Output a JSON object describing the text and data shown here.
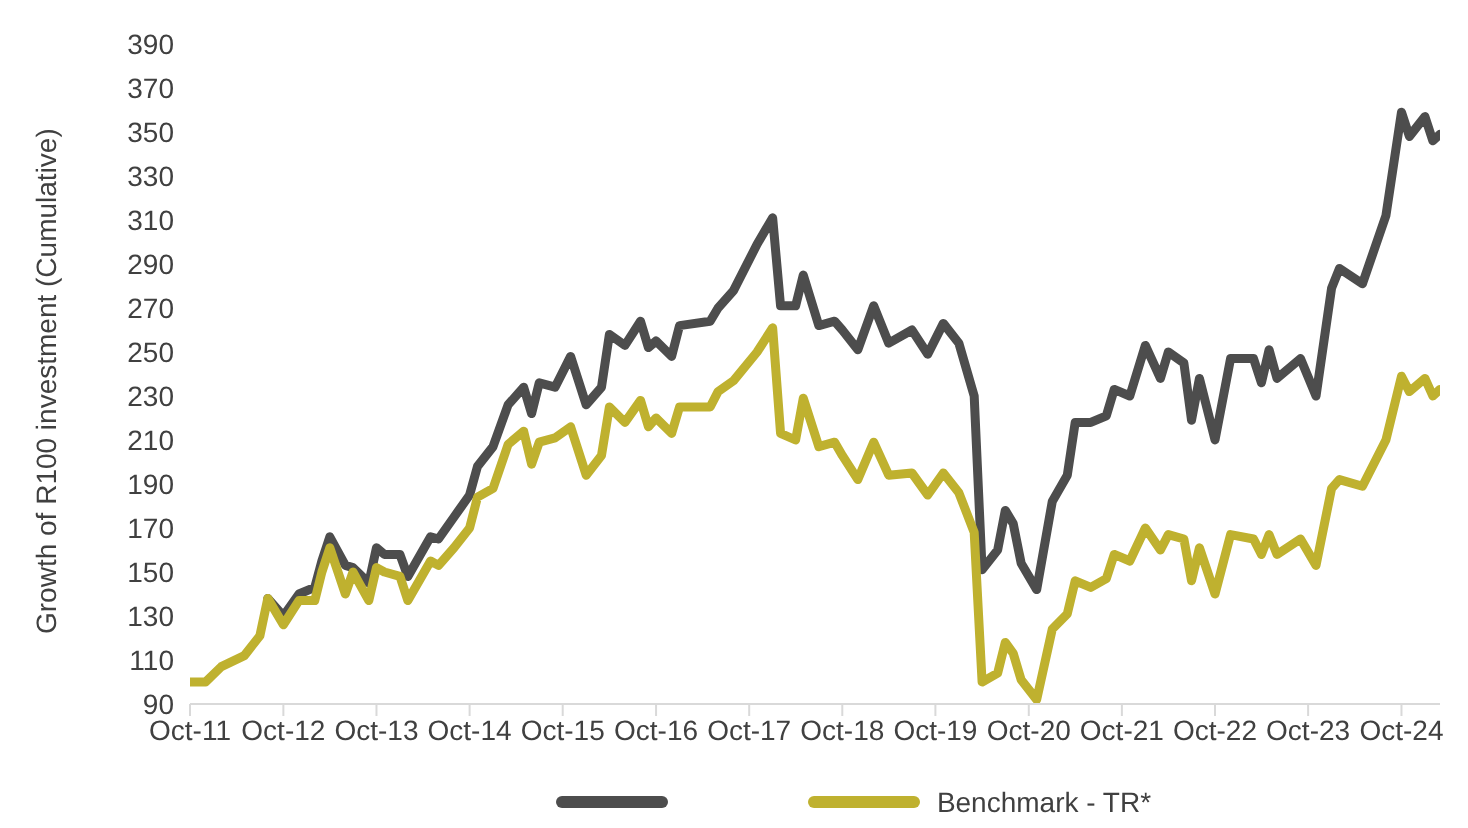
{
  "chart_data": {
    "type": "line",
    "ylabel": "Growth of R100 investment (Cumulative)",
    "x": [
      "2011-10",
      "2011-12",
      "2012-02",
      "2012-05",
      "2012-07",
      "2012-08",
      "2012-10",
      "2012-12",
      "2013-02",
      "2013-03",
      "2013-04",
      "2013-06",
      "2013-07",
      "2013-09",
      "2013-10",
      "2013-11",
      "2014-01",
      "2014-02",
      "2014-05",
      "2014-06",
      "2014-08",
      "2014-10",
      "2014-11",
      "2015-01",
      "2015-03",
      "2015-05",
      "2015-06",
      "2015-07",
      "2015-09",
      "2015-11",
      "2016-01",
      "2016-03",
      "2016-04",
      "2016-06",
      "2016-08",
      "2016-09",
      "2016-10",
      "2016-12",
      "2017-01",
      "2017-05",
      "2017-06",
      "2017-08",
      "2017-11",
      "2018-01",
      "2018-02",
      "2018-04",
      "2018-05",
      "2018-07",
      "2018-09",
      "2018-10",
      "2018-12",
      "2019-02",
      "2019-04",
      "2019-07",
      "2019-09",
      "2019-11",
      "2020-01",
      "2020-03",
      "2020-04",
      "2020-06",
      "2020-07",
      "2020-08",
      "2020-09",
      "2020-11",
      "2021-01",
      "2021-03",
      "2021-04",
      "2021-06",
      "2021-08",
      "2021-09",
      "2021-11",
      "2022-01",
      "2022-03",
      "2022-04",
      "2022-06",
      "2022-07",
      "2022-08",
      "2022-10",
      "2022-12",
      "2023-03",
      "2023-04",
      "2023-05",
      "2023-06",
      "2023-09",
      "2023-11",
      "2024-01",
      "2024-02",
      "2024-05",
      "2024-08",
      "2024-10",
      "2024-11",
      "2025-01",
      "2025-02",
      "2025-03"
    ],
    "series": [
      {
        "color": "#4d4d4d",
        "values": [
          null,
          null,
          null,
          null,
          null,
          138,
          130,
          140,
          143,
          155,
          166,
          153,
          152,
          145,
          161,
          158,
          158,
          148,
          166,
          165,
          175,
          185,
          198,
          207,
          226,
          234,
          222,
          236,
          234,
          248,
          226,
          234,
          258,
          253,
          264,
          252,
          255,
          248,
          262,
          264,
          270,
          278,
          299,
          311,
          271,
          271,
          285,
          262,
          264,
          260,
          251,
          271,
          254,
          260,
          249,
          263,
          254,
          230,
          151,
          160,
          178,
          172,
          154,
          142,
          182,
          194,
          218,
          218,
          221,
          233,
          230,
          253,
          238,
          250,
          245,
          219,
          238,
          210,
          247,
          247,
          236,
          251,
          238,
          247,
          230,
          279,
          288,
          281,
          312,
          359,
          348,
          357,
          346,
          349
        ]
      },
      {
        "name": "Benchmark - TR*",
        "color": "#bfb12f",
        "values": [
          100,
          100,
          107,
          112,
          121,
          138,
          126,
          137,
          137,
          150,
          161,
          140,
          150,
          137,
          152,
          150,
          148,
          137,
          155,
          153,
          161,
          170,
          184,
          188,
          208,
          214,
          199,
          209,
          211,
          216,
          194,
          203,
          225,
          218,
          228,
          216,
          220,
          213,
          225,
          225,
          232,
          237,
          250,
          261,
          213,
          210,
          229,
          207,
          209,
          203,
          192,
          209,
          194,
          195,
          185,
          195,
          186,
          168,
          100,
          104,
          118,
          113,
          101,
          92,
          124,
          131,
          146,
          143,
          147,
          158,
          155,
          170,
          160,
          167,
          165,
          146,
          161,
          140,
          167,
          165,
          158,
          167,
          158,
          165,
          153,
          188,
          192,
          189,
          210,
          239,
          232,
          238,
          230,
          233
        ]
      }
    ],
    "xlim": [
      "2011-10",
      "2025-03"
    ],
    "xticks": [
      {
        "value": "2011-10",
        "label": "Oct-11"
      },
      {
        "value": "2012-10",
        "label": "Oct-12"
      },
      {
        "value": "2013-10",
        "label": "Oct-13"
      },
      {
        "value": "2014-10",
        "label": "Oct-14"
      },
      {
        "value": "2015-10",
        "label": "Oct-15"
      },
      {
        "value": "2016-10",
        "label": "Oct-16"
      },
      {
        "value": "2017-10",
        "label": "Oct-17"
      },
      {
        "value": "2018-10",
        "label": "Oct-18"
      },
      {
        "value": "2019-10",
        "label": "Oct-19"
      },
      {
        "value": "2020-10",
        "label": "Oct-20"
      },
      {
        "value": "2021-10",
        "label": "Oct-21"
      },
      {
        "value": "2022-10",
        "label": "Oct-22"
      },
      {
        "value": "2023-10",
        "label": "Oct-23"
      },
      {
        "value": "2024-10",
        "label": "Oct-24"
      }
    ],
    "ylim": [
      90,
      390
    ],
    "yticks": [
      90,
      110,
      130,
      150,
      170,
      190,
      210,
      230,
      250,
      270,
      290,
      310,
      330,
      350,
      370,
      390
    ],
    "grid": false,
    "legend": "bottom",
    "marker": "none",
    "line_style": "solid"
  }
}
